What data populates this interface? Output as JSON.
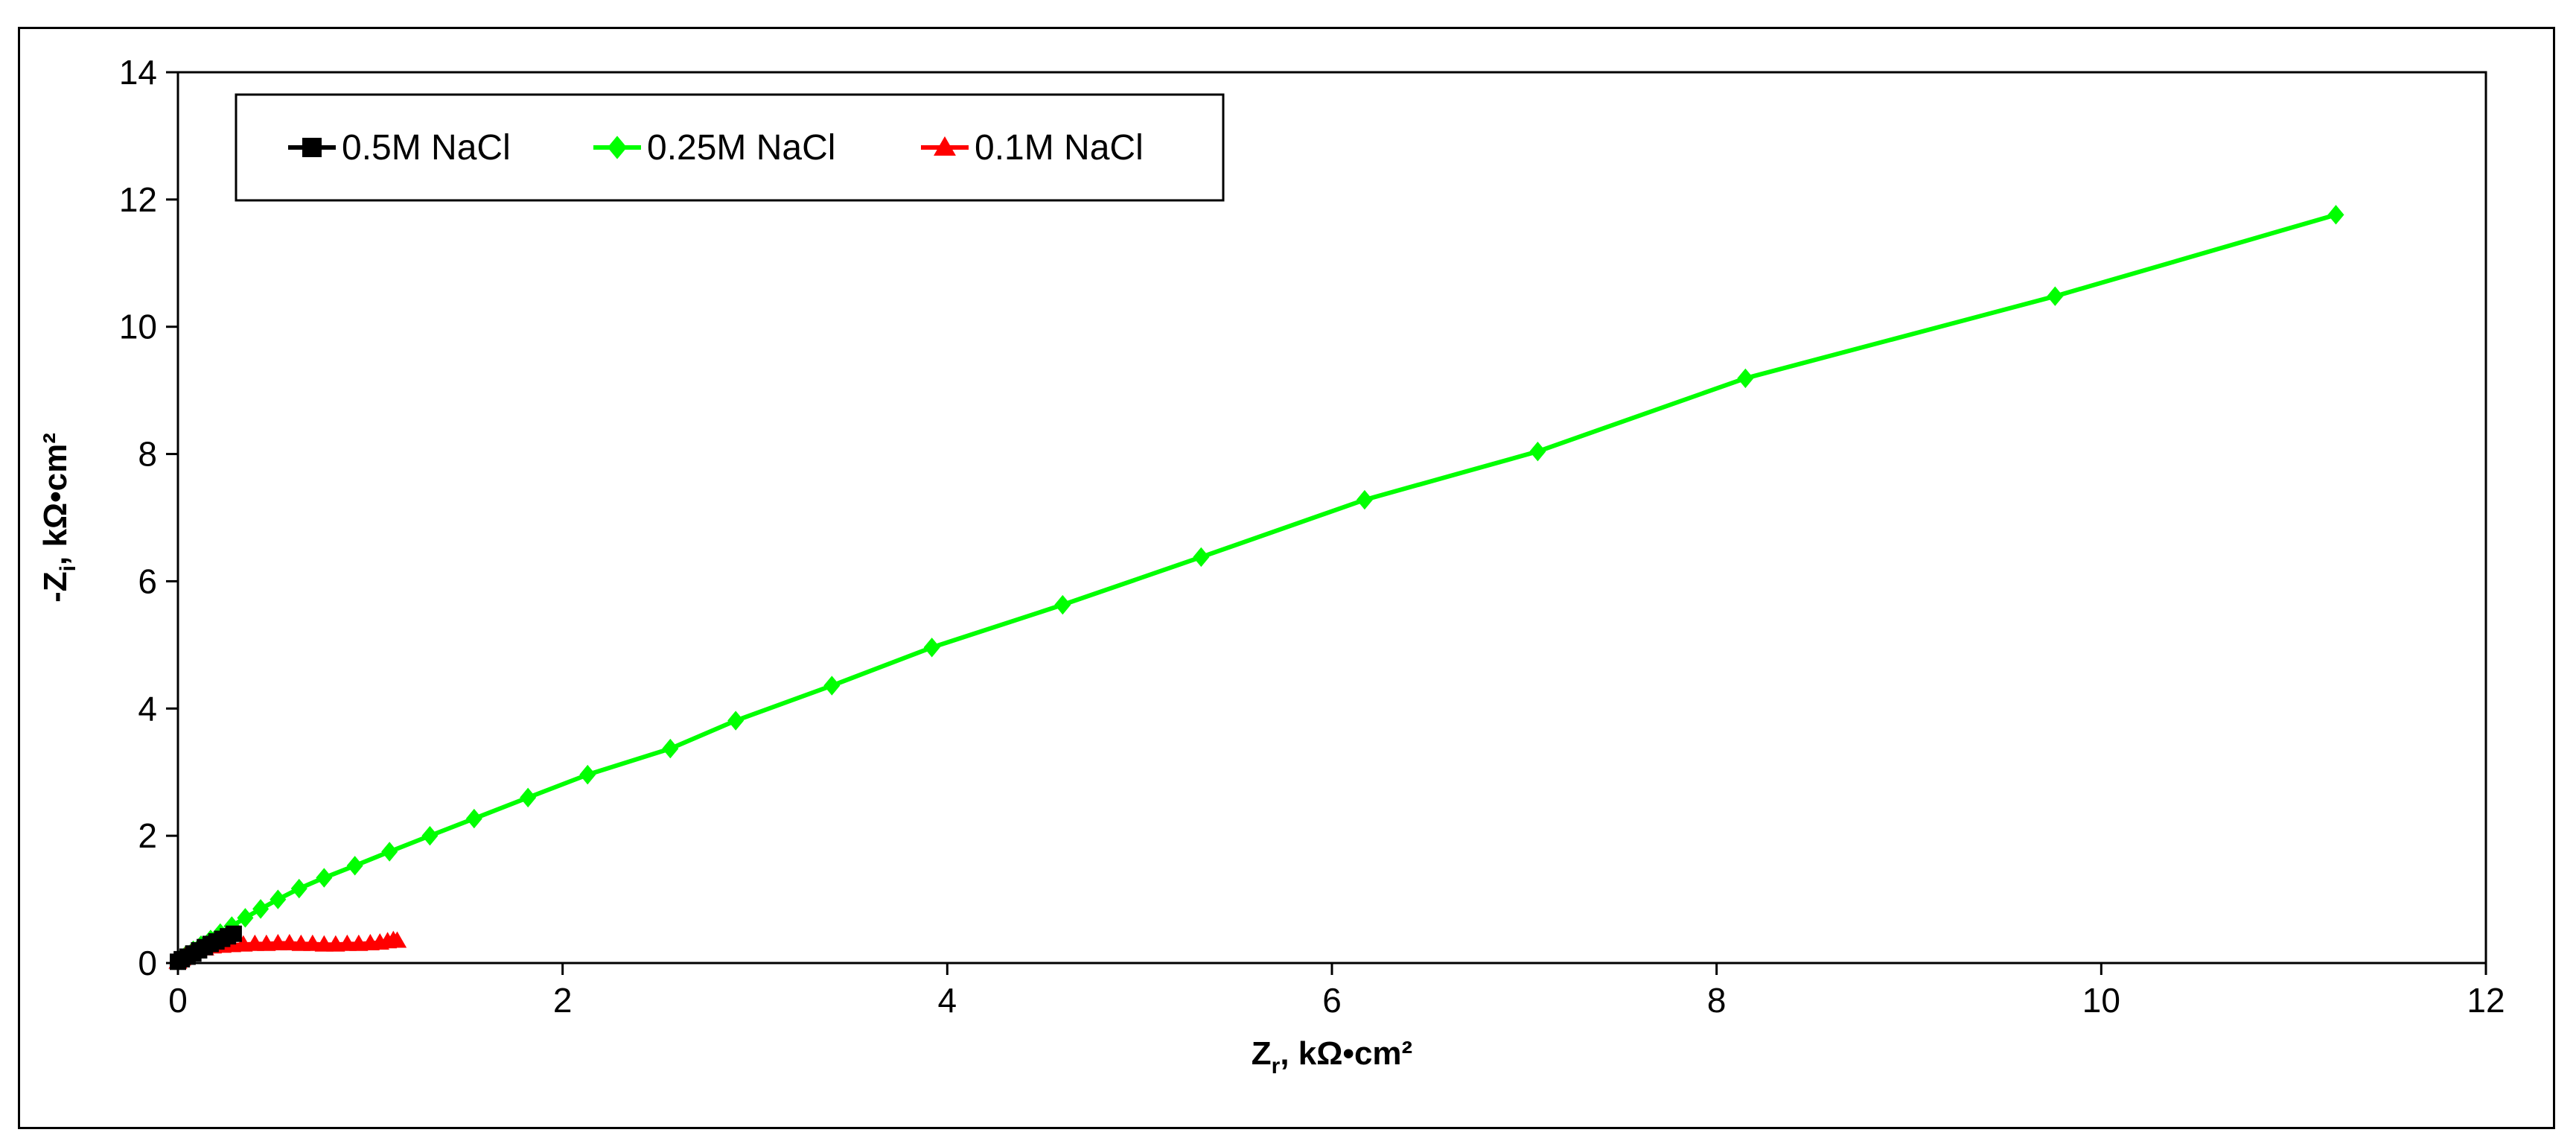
{
  "chart_data": {
    "type": "scatter",
    "xlabel": {
      "main": "Z",
      "sub": "r",
      "rest": ", kΩ•cm²"
    },
    "ylabel": {
      "main": "-Z",
      "sub": "i",
      "rest": ", kΩ•cm²"
    },
    "xlim": [
      0,
      12
    ],
    "ylim": [
      0,
      14
    ],
    "xticks": [
      0,
      2,
      4,
      6,
      8,
      10,
      12
    ],
    "yticks": [
      0,
      2,
      4,
      6,
      8,
      10,
      12,
      14
    ],
    "grid": false,
    "legend_placement": "top-left",
    "series": [
      {
        "name": "0.5M NaCl",
        "color": "#000000",
        "marker": "square",
        "x": [
          0.0,
          0.02,
          0.05,
          0.08,
          0.11,
          0.14,
          0.17,
          0.2,
          0.23,
          0.26,
          0.29
        ],
        "y": [
          0.02,
          0.06,
          0.1,
          0.15,
          0.2,
          0.25,
          0.3,
          0.34,
          0.38,
          0.42,
          0.46
        ]
      },
      {
        "name": "0.25M NaCl",
        "color": "#00ff00",
        "marker": "diamond",
        "x": [
          0.01,
          0.04,
          0.08,
          0.12,
          0.17,
          0.22,
          0.28,
          0.35,
          0.43,
          0.52,
          0.63,
          0.76,
          0.92,
          1.1,
          1.31,
          1.54,
          1.82,
          2.13,
          2.56,
          2.9,
          3.4,
          3.92,
          4.6,
          5.32,
          6.17,
          7.07,
          8.15,
          9.76,
          11.22
        ],
        "y": [
          0.05,
          0.12,
          0.2,
          0.28,
          0.37,
          0.47,
          0.58,
          0.71,
          0.85,
          1.0,
          1.17,
          1.34,
          1.53,
          1.75,
          2.0,
          2.27,
          2.6,
          2.96,
          3.37,
          3.81,
          4.36,
          4.96,
          5.63,
          6.38,
          7.28,
          8.04,
          9.19,
          10.48,
          11.76
        ]
      },
      {
        "name": "0.1M NaCl",
        "color": "#ff0000",
        "marker": "triangle",
        "x": [
          0.0,
          0.02,
          0.04,
          0.07,
          0.1,
          0.14,
          0.18,
          0.23,
          0.28,
          0.34,
          0.4,
          0.46,
          0.52,
          0.58,
          0.64,
          0.7,
          0.76,
          0.82,
          0.88,
          0.94,
          1.0,
          1.05,
          1.09,
          1.12,
          1.14
        ],
        "y": [
          0.02,
          0.07,
          0.12,
          0.16,
          0.2,
          0.23,
          0.26,
          0.27,
          0.28,
          0.29,
          0.3,
          0.3,
          0.31,
          0.31,
          0.3,
          0.3,
          0.29,
          0.29,
          0.3,
          0.3,
          0.31,
          0.32,
          0.34,
          0.36,
          0.35
        ]
      }
    ]
  }
}
